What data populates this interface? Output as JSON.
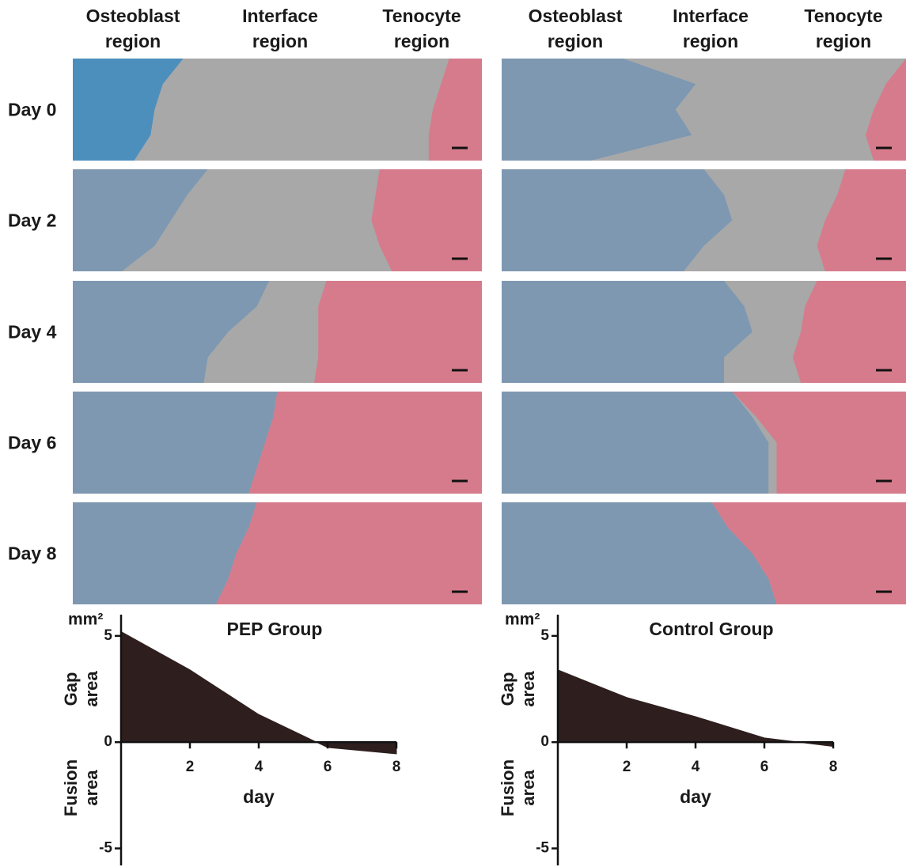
{
  "figure": {
    "panels": [
      {
        "columns": [
          [
            "Osteoblast",
            "region"
          ],
          [
            "Interface",
            "region"
          ],
          [
            "Tenocyte",
            "region"
          ]
        ]
      },
      {
        "columns": [
          [
            "Osteoblast",
            "region"
          ],
          [
            "Interface",
            "region"
          ],
          [
            "Tenocyte",
            "region"
          ]
        ]
      }
    ],
    "rows": [
      "Day 0",
      "Day 2",
      "Day 4",
      "Day 6",
      "Day 8"
    ]
  },
  "chart_data": [
    {
      "type": "area",
      "title": "PEP Group",
      "x_label": "day",
      "y_unit": "mm²",
      "y_label_upper": [
        "Gap",
        "area"
      ],
      "y_label_lower": [
        "Fusion",
        "area"
      ],
      "x": [
        0,
        2,
        4,
        6,
        8
      ],
      "values": [
        5.2,
        3.4,
        1.3,
        -0.25,
        -0.55
      ],
      "color": "#2e1f1e",
      "xlim": [
        0,
        8
      ],
      "xticks": [
        2,
        4,
        6,
        8
      ],
      "ylim": [
        -5.8,
        6
      ],
      "yticks": [
        5,
        0,
        -5
      ]
    },
    {
      "type": "area",
      "title": "Control Group",
      "x_label": "day",
      "y_unit": "mm²",
      "y_label_upper": [
        "Gap",
        "area"
      ],
      "y_label_lower": [
        "Fusion",
        "area"
      ],
      "x": [
        0,
        2,
        4,
        6,
        8
      ],
      "values": [
        3.4,
        2.1,
        1.2,
        0.2,
        -0.2
      ],
      "color": "#2e1f1e",
      "xlim": [
        0,
        8
      ],
      "xticks": [
        2,
        4,
        6,
        8
      ],
      "ylim": [
        -5.8,
        6
      ],
      "yticks": [
        5,
        0,
        -5
      ]
    }
  ]
}
